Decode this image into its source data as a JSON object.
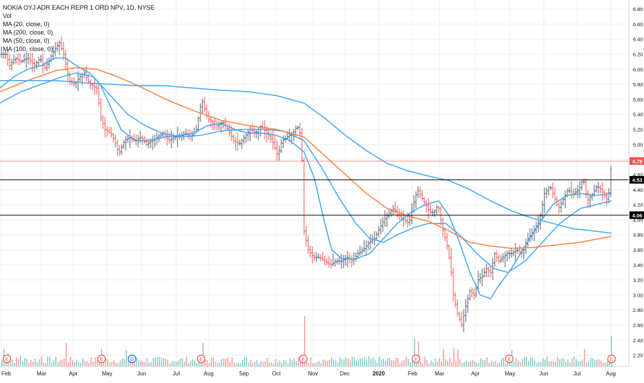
{
  "legend": {
    "title": "NOKIA OYJ ADR EACH REPR 1 ORD NPV, 1D, NYSE",
    "lines": [
      "Vol",
      "MA (20, close, 0)",
      "MA (200, close, 0)",
      "MA (50, close, 0)",
      "MA (100, close, 0)"
    ]
  },
  "colors": {
    "up": "#26a69a",
    "down": "#ef5350",
    "bar": "#555e6e",
    "ma_blue": "#42a5f5",
    "ma_orange": "#ff7f3f",
    "price_label": "#ef5350",
    "hline": "#000000",
    "grid": "#eef0f3"
  },
  "chart_data": {
    "type": "ohlc",
    "title": "NOKIA OYJ ADR EACH REPR 1 ORD NPV, 1D, NYSE",
    "ylim": [
      2.05,
      6.92
    ],
    "y_ticks": [
      "2.20",
      "2.40",
      "2.60",
      "2.80",
      "3.00",
      "3.20",
      "3.40",
      "3.60",
      "3.80",
      "4.00",
      "4.20",
      "4.40",
      "4.60",
      "4.80",
      "5.00",
      "5.20",
      "5.40",
      "5.60",
      "5.80",
      "6.00",
      "6.20",
      "6.40",
      "6.60",
      "6.80"
    ],
    "x_ticks": [
      "Feb",
      "Mar",
      "Apr",
      "May",
      "Jun",
      "Jul",
      "Aug",
      "Sep",
      "Oct",
      "Nov",
      "Dec",
      "2020",
      "Feb",
      "Mar",
      "Apr",
      "May",
      "Jun",
      "Jul",
      "Aug"
    ],
    "price_labels": [
      {
        "value": 4.78,
        "text": "4.78",
        "style": "last"
      },
      {
        "value": 4.53,
        "text": "4.53",
        "style": "line"
      },
      {
        "value": 4.06,
        "text": "4.06",
        "style": "line"
      }
    ],
    "grid": true,
    "series": [
      {
        "name": "Price",
        "kind": "ohlc_close_path",
        "points": [
          [
            0,
            6.2
          ],
          [
            8,
            6.2
          ],
          [
            14,
            6.05
          ],
          [
            22,
            6.15
          ],
          [
            30,
            6.1
          ],
          [
            40,
            6.15
          ],
          [
            50,
            6.05
          ],
          [
            58,
            6.15
          ],
          [
            64,
            6.0
          ],
          [
            70,
            6.1
          ],
          [
            78,
            6.25
          ],
          [
            86,
            6.35
          ],
          [
            92,
            6.2
          ],
          [
            100,
            5.85
          ],
          [
            108,
            5.8
          ],
          [
            116,
            5.9
          ],
          [
            122,
            5.95
          ],
          [
            130,
            5.8
          ],
          [
            140,
            5.75
          ],
          [
            146,
            5.35
          ],
          [
            152,
            5.2
          ],
          [
            160,
            5.15
          ],
          [
            166,
            5.05
          ],
          [
            172,
            4.88
          ],
          [
            180,
            5.05
          ],
          [
            188,
            5.1
          ],
          [
            196,
            5.05
          ],
          [
            204,
            5.1
          ],
          [
            212,
            5.0
          ],
          [
            220,
            5.05
          ],
          [
            228,
            5.1
          ],
          [
            236,
            5.15
          ],
          [
            244,
            5.05
          ],
          [
            252,
            5.1
          ],
          [
            260,
            5.1
          ],
          [
            268,
            5.15
          ],
          [
            276,
            5.1
          ],
          [
            284,
            5.2
          ],
          [
            292,
            5.6
          ],
          [
            300,
            5.35
          ],
          [
            306,
            5.3
          ],
          [
            314,
            5.25
          ],
          [
            322,
            5.3
          ],
          [
            330,
            5.2
          ],
          [
            338,
            5.05
          ],
          [
            346,
            5.0
          ],
          [
            354,
            5.1
          ],
          [
            362,
            5.2
          ],
          [
            370,
            5.15
          ],
          [
            378,
            5.25
          ],
          [
            386,
            5.15
          ],
          [
            394,
            5.05
          ],
          [
            402,
            4.85
          ],
          [
            408,
            5.05
          ],
          [
            416,
            5.1
          ],
          [
            424,
            5.15
          ],
          [
            430,
            5.25
          ],
          [
            436,
            5.1
          ],
          [
            440,
            3.85
          ],
          [
            446,
            3.6
          ],
          [
            454,
            3.5
          ],
          [
            462,
            3.5
          ],
          [
            470,
            3.45
          ],
          [
            478,
            3.4
          ],
          [
            486,
            3.45
          ],
          [
            494,
            3.45
          ],
          [
            502,
            3.5
          ],
          [
            510,
            3.45
          ],
          [
            518,
            3.55
          ],
          [
            526,
            3.6
          ],
          [
            534,
            3.7
          ],
          [
            542,
            3.75
          ],
          [
            550,
            3.9
          ],
          [
            556,
            4.0
          ],
          [
            564,
            4.1
          ],
          [
            570,
            4.15
          ],
          [
            576,
            4.05
          ],
          [
            584,
            4.0
          ],
          [
            592,
            3.95
          ],
          [
            598,
            4.2
          ],
          [
            604,
            4.4
          ],
          [
            610,
            4.3
          ],
          [
            616,
            4.2
          ],
          [
            622,
            4.1
          ],
          [
            628,
            4.1
          ],
          [
            634,
            4.2
          ],
          [
            640,
            3.9
          ],
          [
            646,
            3.7
          ],
          [
            652,
            3.4
          ],
          [
            656,
            3.0
          ],
          [
            662,
            2.75
          ],
          [
            668,
            2.6
          ],
          [
            674,
            2.85
          ],
          [
            680,
            3.05
          ],
          [
            686,
            3.0
          ],
          [
            692,
            3.2
          ],
          [
            698,
            3.25
          ],
          [
            704,
            3.35
          ],
          [
            710,
            3.3
          ],
          [
            716,
            3.55
          ],
          [
            722,
            3.45
          ],
          [
            728,
            3.5
          ],
          [
            734,
            3.55
          ],
          [
            740,
            3.55
          ],
          [
            748,
            3.6
          ],
          [
            756,
            3.55
          ],
          [
            764,
            3.75
          ],
          [
            772,
            3.85
          ],
          [
            780,
            3.95
          ],
          [
            788,
            4.35
          ],
          [
            796,
            4.45
          ],
          [
            802,
            4.3
          ],
          [
            808,
            4.15
          ],
          [
            814,
            4.25
          ],
          [
            822,
            4.4
          ],
          [
            830,
            4.35
          ],
          [
            838,
            4.4
          ],
          [
            844,
            4.55
          ],
          [
            850,
            4.25
          ],
          [
            858,
            4.35
          ],
          [
            864,
            4.45
          ],
          [
            870,
            4.4
          ],
          [
            876,
            4.3
          ],
          [
            880,
            4.25
          ],
          [
            885,
            4.78
          ]
        ]
      },
      {
        "name": "MA (20, close, 0)",
        "color": "ma_blue",
        "kind": "line",
        "points": [
          [
            0,
            5.75
          ],
          [
            20,
            5.9
          ],
          [
            40,
            6.0
          ],
          [
            60,
            6.05
          ],
          [
            80,
            6.15
          ],
          [
            95,
            6.15
          ],
          [
            110,
            6.05
          ],
          [
            130,
            5.95
          ],
          [
            145,
            5.8
          ],
          [
            160,
            5.5
          ],
          [
            175,
            5.2
          ],
          [
            195,
            5.05
          ],
          [
            215,
            5.05
          ],
          [
            240,
            5.1
          ],
          [
            260,
            5.12
          ],
          [
            280,
            5.15
          ],
          [
            300,
            5.25
          ],
          [
            320,
            5.28
          ],
          [
            340,
            5.2
          ],
          [
            360,
            5.15
          ],
          [
            380,
            5.15
          ],
          [
            400,
            5.12
          ],
          [
            420,
            5.05
          ],
          [
            440,
            4.9
          ],
          [
            455,
            4.55
          ],
          [
            470,
            3.95
          ],
          [
            480,
            3.6
          ],
          [
            495,
            3.48
          ],
          [
            515,
            3.48
          ],
          [
            535,
            3.55
          ],
          [
            555,
            3.75
          ],
          [
            575,
            3.95
          ],
          [
            595,
            4.1
          ],
          [
            615,
            4.2
          ],
          [
            635,
            4.25
          ],
          [
            650,
            4.05
          ],
          [
            665,
            3.7
          ],
          [
            680,
            3.3
          ],
          [
            695,
            3.0
          ],
          [
            710,
            2.95
          ],
          [
            720,
            3.1
          ],
          [
            740,
            3.35
          ],
          [
            760,
            3.65
          ],
          [
            780,
            3.95
          ],
          [
            800,
            4.2
          ],
          [
            820,
            4.32
          ],
          [
            840,
            4.35
          ],
          [
            860,
            4.32
          ],
          [
            885,
            4.35
          ]
        ]
      },
      {
        "name": "MA (50, close, 0)",
        "color": "ma_blue",
        "kind": "line",
        "points": [
          [
            0,
            5.55
          ],
          [
            30,
            5.7
          ],
          [
            60,
            5.8
          ],
          [
            90,
            5.9
          ],
          [
            110,
            5.95
          ],
          [
            135,
            5.9
          ],
          [
            160,
            5.65
          ],
          [
            185,
            5.4
          ],
          [
            210,
            5.25
          ],
          [
            235,
            5.15
          ],
          [
            260,
            5.1
          ],
          [
            290,
            5.12
          ],
          [
            320,
            5.18
          ],
          [
            350,
            5.2
          ],
          [
            380,
            5.2
          ],
          [
            410,
            5.18
          ],
          [
            440,
            5.05
          ],
          [
            465,
            4.7
          ],
          [
            490,
            4.3
          ],
          [
            515,
            3.95
          ],
          [
            535,
            3.75
          ],
          [
            555,
            3.7
          ],
          [
            575,
            3.8
          ],
          [
            600,
            3.9
          ],
          [
            620,
            3.95
          ],
          [
            645,
            3.95
          ],
          [
            665,
            3.8
          ],
          [
            690,
            3.55
          ],
          [
            715,
            3.35
          ],
          [
            735,
            3.3
          ],
          [
            760,
            3.45
          ],
          [
            785,
            3.7
          ],
          [
            810,
            3.95
          ],
          [
            840,
            4.15
          ],
          [
            885,
            4.25
          ]
        ]
      },
      {
        "name": "MA (100, close, 0)",
        "color": "ma_orange",
        "kind": "line",
        "points": [
          [
            0,
            5.7
          ],
          [
            40,
            5.85
          ],
          [
            80,
            5.98
          ],
          [
            110,
            6.02
          ],
          [
            140,
            6.0
          ],
          [
            170,
            5.9
          ],
          [
            200,
            5.78
          ],
          [
            240,
            5.6
          ],
          [
            280,
            5.45
          ],
          [
            320,
            5.32
          ],
          [
            360,
            5.25
          ],
          [
            400,
            5.2
          ],
          [
            440,
            5.1
          ],
          [
            470,
            4.85
          ],
          [
            500,
            4.6
          ],
          [
            530,
            4.35
          ],
          [
            560,
            4.15
          ],
          [
            590,
            4.05
          ],
          [
            620,
            3.98
          ],
          [
            650,
            3.85
          ],
          [
            680,
            3.7
          ],
          [
            710,
            3.65
          ],
          [
            740,
            3.62
          ],
          [
            770,
            3.63
          ],
          [
            800,
            3.66
          ],
          [
            840,
            3.7
          ],
          [
            885,
            3.78
          ]
        ]
      },
      {
        "name": "MA (200, close, 0)",
        "color": "ma_blue",
        "kind": "line",
        "points": [
          [
            0,
            5.85
          ],
          [
            40,
            5.85
          ],
          [
            80,
            5.85
          ],
          [
            120,
            5.82
          ],
          [
            160,
            5.8
          ],
          [
            200,
            5.78
          ],
          [
            240,
            5.78
          ],
          [
            280,
            5.75
          ],
          [
            320,
            5.72
          ],
          [
            360,
            5.7
          ],
          [
            400,
            5.65
          ],
          [
            440,
            5.55
          ],
          [
            470,
            5.35
          ],
          [
            500,
            5.12
          ],
          [
            530,
            4.92
          ],
          [
            560,
            4.75
          ],
          [
            590,
            4.65
          ],
          [
            620,
            4.58
          ],
          [
            650,
            4.52
          ],
          [
            680,
            4.4
          ],
          [
            710,
            4.25
          ],
          [
            740,
            4.12
          ],
          [
            770,
            4.02
          ],
          [
            800,
            3.95
          ],
          [
            830,
            3.88
          ],
          [
            860,
            3.85
          ],
          [
            885,
            3.82
          ]
        ]
      }
    ],
    "volume": {
      "name": "Vol",
      "spikes": [
        [
          4,
          0.3
        ],
        [
          12,
          0.22
        ],
        [
          30,
          0.18
        ],
        [
          60,
          0.17
        ],
        [
          94,
          0.4
        ],
        [
          146,
          0.3
        ],
        [
          182,
          0.28
        ],
        [
          292,
          0.4
        ],
        [
          440,
          0.85
        ],
        [
          600,
          0.48
        ],
        [
          606,
          0.42
        ],
        [
          642,
          0.3
        ],
        [
          656,
          0.32
        ],
        [
          662,
          0.28
        ],
        [
          740,
          0.28
        ],
        [
          844,
          0.3
        ],
        [
          885,
          0.52
        ]
      ]
    },
    "events": [
      {
        "x": 10,
        "text": "E",
        "kind": "earnings"
      },
      {
        "x": 147,
        "text": "E",
        "kind": "earnings"
      },
      {
        "x": 191,
        "text": "D",
        "kind": "dividend"
      },
      {
        "x": 291,
        "text": "E",
        "kind": "earnings"
      },
      {
        "x": 439,
        "text": "E",
        "kind": "earnings"
      },
      {
        "x": 602,
        "text": "E",
        "kind": "earnings"
      },
      {
        "x": 737,
        "text": "E",
        "kind": "earnings"
      },
      {
        "x": 885,
        "text": "E",
        "kind": "earnings"
      }
    ]
  }
}
